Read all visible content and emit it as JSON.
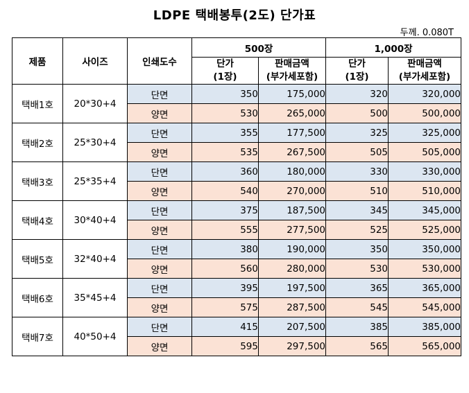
{
  "title": "LDPE 택배봉투(2도) 단가표",
  "thickness": "두께. 0.080T",
  "headers": {
    "product": "제품",
    "size": "사이즈",
    "print_sides": "인쇄도수",
    "qty_500": "500장",
    "qty_1000": "1,000장",
    "unit_price_line1": "단가",
    "unit_price_line2": "(1장)",
    "sale_amount_line1": "판매금액",
    "sale_amount_line2": "(부가세포함)"
  },
  "rows": [
    {
      "product": "택배1호",
      "size": "20*30+4",
      "single": {
        "label": "단면",
        "u500": "350",
        "t500": "175,000",
        "u1000": "320",
        "t1000": "320,000"
      },
      "double": {
        "label": "양면",
        "u500": "530",
        "t500": "265,000",
        "u1000": "500",
        "t1000": "500,000"
      }
    },
    {
      "product": "택배2호",
      "size": "25*30+4",
      "single": {
        "label": "단면",
        "u500": "355",
        "t500": "177,500",
        "u1000": "325",
        "t1000": "325,000"
      },
      "double": {
        "label": "양면",
        "u500": "535",
        "t500": "267,500",
        "u1000": "505",
        "t1000": "505,000"
      }
    },
    {
      "product": "택배3호",
      "size": "25*35+4",
      "single": {
        "label": "단면",
        "u500": "360",
        "t500": "180,000",
        "u1000": "330",
        "t1000": "330,000"
      },
      "double": {
        "label": "양면",
        "u500": "540",
        "t500": "270,000",
        "u1000": "510",
        "t1000": "510,000"
      }
    },
    {
      "product": "택배4호",
      "size": "30*40+4",
      "single": {
        "label": "단면",
        "u500": "375",
        "t500": "187,500",
        "u1000": "345",
        "t1000": "345,000"
      },
      "double": {
        "label": "양면",
        "u500": "555",
        "t500": "277,500",
        "u1000": "525",
        "t1000": "525,000"
      }
    },
    {
      "product": "택배5호",
      "size": "32*40+4",
      "single": {
        "label": "단면",
        "u500": "380",
        "t500": "190,000",
        "u1000": "350",
        "t1000": "350,000"
      },
      "double": {
        "label": "양면",
        "u500": "560",
        "t500": "280,000",
        "u1000": "530",
        "t1000": "530,000"
      }
    },
    {
      "product": "택배6호",
      "size": "35*45+4",
      "single": {
        "label": "단면",
        "u500": "395",
        "t500": "197,500",
        "u1000": "365",
        "t1000": "365,000"
      },
      "double": {
        "label": "양면",
        "u500": "575",
        "t500": "287,500",
        "u1000": "545",
        "t1000": "545,000"
      }
    },
    {
      "product": "택배7호",
      "size": "40*50+4",
      "single": {
        "label": "단면",
        "u500": "415",
        "t500": "207,500",
        "u1000": "385",
        "t1000": "385,000"
      },
      "double": {
        "label": "양면",
        "u500": "595",
        "t500": "297,500",
        "u1000": "565",
        "t1000": "565,000"
      }
    }
  ],
  "colors": {
    "single_bg": "#dce6f1",
    "double_bg": "#fbe2d5"
  }
}
